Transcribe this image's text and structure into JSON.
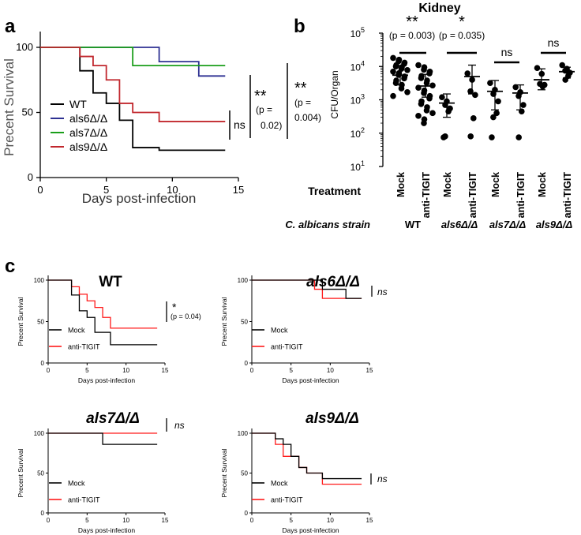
{
  "panel_labels": {
    "a": "a",
    "b": "b",
    "c": "c"
  },
  "colors": {
    "wt": "#000000",
    "als6": "#2e3192",
    "als7": "#1a9e1a",
    "als9": "#c1272d",
    "mock": "#000000",
    "anti": "#ff1a1a"
  },
  "sig": {
    "double": "**",
    "single": "*",
    "ns": "ns",
    "p_a1_l1": "(p =",
    "p_a1_l2": "0.02)",
    "p_a2_l1": "(p =",
    "p_a2_l2": "0.004)",
    "p_b1": "(p = 0.003)",
    "p_b2": "(p = 0.035)",
    "p_c1": "(p = 0.04)"
  },
  "axis_text": {
    "x_days": "Days post-infection",
    "y_surv": "Precent Survival",
    "y_cfu": "CFU/Organ",
    "treatment": "Treatment",
    "strain_label": "C. albicans strain"
  },
  "chart_data": [
    {
      "id": "a",
      "type": "line",
      "step": true,
      "title": "",
      "xlabel": "Days post-infection",
      "ylabel": "Precent Survival",
      "xlim": [
        0,
        15
      ],
      "ylim": [
        0,
        100
      ],
      "xticks": [
        "0",
        "5",
        "10",
        "15"
      ],
      "yticks": [
        "0",
        "50",
        "100"
      ],
      "series": [
        {
          "name": "WT",
          "color": "#000000",
          "x": [
            0,
            3,
            4,
            5,
            6,
            7,
            9,
            14
          ],
          "y": [
            100,
            82,
            65,
            57,
            44,
            23,
            21,
            21
          ]
        },
        {
          "name": "als6Δ/Δ",
          "color": "#2e3192",
          "x": [
            0,
            9,
            12,
            14
          ],
          "y": [
            100,
            89,
            78,
            78
          ]
        },
        {
          "name": "als7Δ/Δ",
          "color": "#1a9e1a",
          "x": [
            0,
            7,
            14
          ],
          "y": [
            100,
            86,
            86
          ]
        },
        {
          "name": "als9Δ/Δ",
          "color": "#c1272d",
          "x": [
            0,
            3,
            4,
            5,
            6,
            7,
            9,
            14
          ],
          "y": [
            100,
            93,
            86,
            75,
            57,
            50,
            43,
            43
          ]
        }
      ]
    },
    {
      "id": "b",
      "type": "scatter",
      "title": "Kidney",
      "ylabel": "CFU/Organ",
      "yscale": "log",
      "ylim": [
        10,
        100000
      ],
      "yticks": [
        {
          "base": "10",
          "exp": "1"
        },
        {
          "base": "10",
          "exp": "2"
        },
        {
          "base": "10",
          "exp": "3"
        },
        {
          "base": "10",
          "exp": "4"
        },
        {
          "base": "10",
          "exp": "5"
        }
      ],
      "treatments": [
        "Mock",
        "anti-TIGIT",
        "Mock",
        "anti-TIGIT",
        "Mock",
        "anti-TIGIT",
        "Mock",
        "anti-TIGIT"
      ],
      "strains": [
        "WT",
        "als6Δ/Δ",
        "als7Δ/Δ",
        "als9Δ/Δ"
      ],
      "groups": [
        {
          "label": "WT Mock",
          "mean": 5500,
          "sd_low": 2800,
          "sd_high": 10500,
          "values": [
            18000,
            16000,
            14500,
            13000,
            12000,
            11000,
            10000,
            9500,
            8500,
            7800,
            7000,
            6300,
            5600,
            5000,
            4400,
            3800,
            3200,
            2800,
            2200,
            1700,
            1300
          ]
        },
        {
          "label": "WT anti-TIGIT",
          "mean": 2600,
          "sd_low": 1200,
          "sd_high": 5800,
          "values": [
            11000,
            9500,
            8000,
            7000,
            6200,
            5200,
            4500,
            3800,
            3200,
            2700,
            2300,
            1900,
            1600,
            1300,
            1100,
            900,
            750,
            600,
            480,
            400,
            330,
            260,
            200
          ]
        },
        {
          "label": "als6Δ/Δ Mock",
          "mean": 800,
          "sd_low": 300,
          "sd_high": 1500,
          "values": [
            1200,
            900,
            700,
            550,
            450,
            80,
            75
          ]
        },
        {
          "label": "als6Δ/Δ anti-TIGIT",
          "mean": 5000,
          "sd_low": 1500,
          "sd_high": 11000,
          "values": [
            6200,
            4000,
            1800,
            1400,
            280,
            80
          ]
        },
        {
          "label": "als7Δ/Δ Mock",
          "mean": 1800,
          "sd_low": 500,
          "sd_high": 3800,
          "values": [
            3200,
            2000,
            1500,
            900,
            400,
            300,
            75
          ]
        },
        {
          "label": "als7Δ/Δ anti-TIGIT",
          "mean": 1600,
          "sd_low": 500,
          "sd_high": 2800,
          "values": [
            2400,
            1700,
            1300,
            700,
            450,
            75
          ]
        },
        {
          "label": "als9Δ/Δ Mock",
          "mean": 4000,
          "sd_low": 2000,
          "sd_high": 8500,
          "values": [
            9000,
            6000,
            3000,
            2800,
            2500
          ]
        },
        {
          "label": "als9Δ/Δ anti-TIGIT",
          "mean": 7000,
          "sd_low": 4500,
          "sd_high": 9500,
          "values": [
            11000,
            8500,
            7500,
            6500,
            5200,
            4000
          ]
        }
      ]
    },
    {
      "id": "c-wt",
      "type": "line",
      "step": true,
      "title": "WT",
      "xlabel": "Days post-infection",
      "ylabel": "Precent Survival",
      "xlim": [
        0,
        15
      ],
      "ylim": [
        0,
        100
      ],
      "xticks": [
        "0",
        "5",
        "10",
        "15"
      ],
      "yticks": [
        "0",
        "50",
        "100"
      ],
      "series": [
        {
          "name": "Mock",
          "color": "#000000",
          "x": [
            0,
            3,
            4,
            5,
            6,
            8,
            14
          ],
          "y": [
            100,
            82,
            63,
            55,
            37,
            22,
            22
          ]
        },
        {
          "name": "anti-TIGIT",
          "color": "#ff1a1a",
          "x": [
            0,
            3,
            4,
            5,
            6,
            7,
            8,
            14
          ],
          "y": [
            100,
            92,
            83,
            75,
            67,
            55,
            42,
            42
          ]
        }
      ]
    },
    {
      "id": "c-als6",
      "type": "line",
      "step": true,
      "title": "als6Δ/Δ",
      "xlabel": "Days post-infection",
      "ylabel": "Precent Survival",
      "xlim": [
        0,
        15
      ],
      "ylim": [
        0,
        100
      ],
      "xticks": [
        "0",
        "5",
        "10",
        "15"
      ],
      "yticks": [
        "0",
        "50",
        "100"
      ],
      "series": [
        {
          "name": "Mock",
          "color": "#000000",
          "x": [
            0,
            8,
            9,
            12,
            14
          ],
          "y": [
            100,
            100,
            89,
            78,
            78
          ]
        },
        {
          "name": "anti-TIGIT",
          "color": "#ff1a1a",
          "x": [
            0,
            8,
            9,
            14
          ],
          "y": [
            100,
            89,
            78,
            78
          ]
        }
      ]
    },
    {
      "id": "c-als7",
      "type": "line",
      "step": true,
      "title": "als7Δ/Δ",
      "xlabel": "Days post-infection",
      "ylabel": "Precent Survival",
      "xlim": [
        0,
        15
      ],
      "ylim": [
        0,
        100
      ],
      "xticks": [
        "0",
        "5",
        "10",
        "15"
      ],
      "yticks": [
        "0",
        "50",
        "100"
      ],
      "series": [
        {
          "name": "Mock",
          "color": "#000000",
          "x": [
            0,
            7,
            14
          ],
          "y": [
            100,
            86,
            86
          ]
        },
        {
          "name": "anti-TIGIT",
          "color": "#ff1a1a",
          "x": [
            0,
            14
          ],
          "y": [
            100,
            100
          ]
        }
      ]
    },
    {
      "id": "c-als9",
      "type": "line",
      "step": true,
      "title": "als9Δ/Δ",
      "xlabel": "Days post-infection",
      "ylabel": "Precent Survival",
      "xlim": [
        0,
        15
      ],
      "ylim": [
        0,
        100
      ],
      "xticks": [
        "0",
        "5",
        "10",
        "15"
      ],
      "yticks": [
        "0",
        "50",
        "100"
      ],
      "series": [
        {
          "name": "Mock",
          "color": "#000000",
          "x": [
            0,
            3,
            4,
            5,
            6,
            7,
            9,
            14
          ],
          "y": [
            100,
            93,
            86,
            71,
            57,
            50,
            43,
            43
          ]
        },
        {
          "name": "anti-TIGIT",
          "color": "#ff1a1a",
          "x": [
            0,
            3,
            4,
            5,
            6,
            7,
            9,
            14
          ],
          "y": [
            100,
            86,
            71,
            71,
            57,
            50,
            36,
            36
          ]
        }
      ]
    }
  ]
}
